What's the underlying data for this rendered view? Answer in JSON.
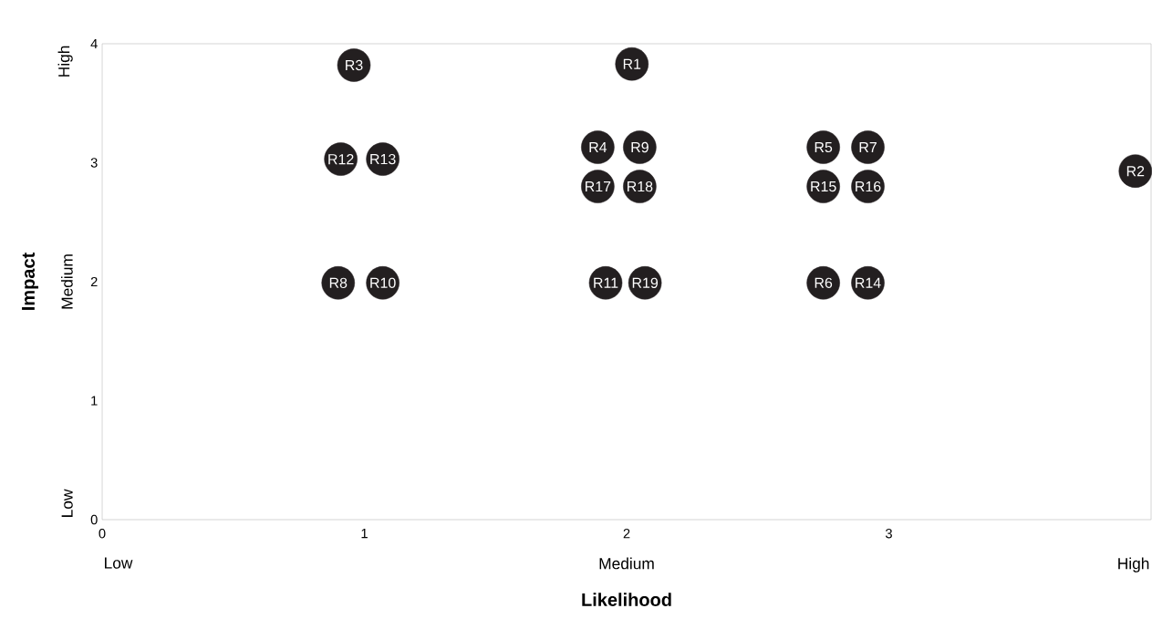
{
  "chart_data": {
    "type": "scatter",
    "xlabel": "Likelihood",
    "ylabel": "Impact",
    "x": [
      2.02,
      3.94,
      0.96,
      1.89,
      2.75,
      2.75,
      2.92,
      0.9,
      2.05,
      1.07,
      1.92,
      0.91,
      1.07,
      2.92,
      2.75,
      2.92,
      1.89,
      2.05,
      2.07
    ],
    "values": [
      3.83,
      2.93,
      3.82,
      3.13,
      3.13,
      1.99,
      3.13,
      1.99,
      3.13,
      1.99,
      1.99,
      3.03,
      3.03,
      1.99,
      2.8,
      2.8,
      2.8,
      2.8,
      1.99
    ],
    "color": "#231f20",
    "xlim": [
      0,
      4
    ],
    "ylim": [
      0,
      4
    ],
    "xticks": [
      0,
      1,
      2,
      3
    ],
    "yticks": [
      0,
      1,
      2,
      3,
      4
    ],
    "annotations": [
      {
        "text": "R1",
        "x": 2.02,
        "y": 3.83
      },
      {
        "text": "R2",
        "x": 3.94,
        "y": 2.93
      },
      {
        "text": "R3",
        "x": 0.96,
        "y": 3.82
      },
      {
        "text": "R4",
        "x": 1.89,
        "y": 3.13
      },
      {
        "text": "R5",
        "x": 2.75,
        "y": 3.13
      },
      {
        "text": "R6",
        "x": 2.75,
        "y": 1.99
      },
      {
        "text": "R7",
        "x": 2.92,
        "y": 3.13
      },
      {
        "text": "R8",
        "x": 0.9,
        "y": 1.99
      },
      {
        "text": "R9",
        "x": 2.05,
        "y": 3.13
      },
      {
        "text": "R10",
        "x": 1.07,
        "y": 1.99
      },
      {
        "text": "R11",
        "x": 1.92,
        "y": 1.99
      },
      {
        "text": "R12",
        "x": 0.91,
        "y": 3.03
      },
      {
        "text": "R13",
        "x": 1.07,
        "y": 3.03
      },
      {
        "text": "R14",
        "x": 2.92,
        "y": 1.99
      },
      {
        "text": "R15",
        "x": 2.75,
        "y": 2.8
      },
      {
        "text": "R16",
        "x": 2.92,
        "y": 2.8
      },
      {
        "text": "R17",
        "x": 1.89,
        "y": 2.8
      },
      {
        "text": "R18",
        "x": 2.05,
        "y": 2.8
      },
      {
        "text": "R19",
        "x": 2.07,
        "y": 1.99
      },
      "Low",
      "Medium",
      "High",
      "Low",
      "Medium",
      "High"
    ]
  }
}
